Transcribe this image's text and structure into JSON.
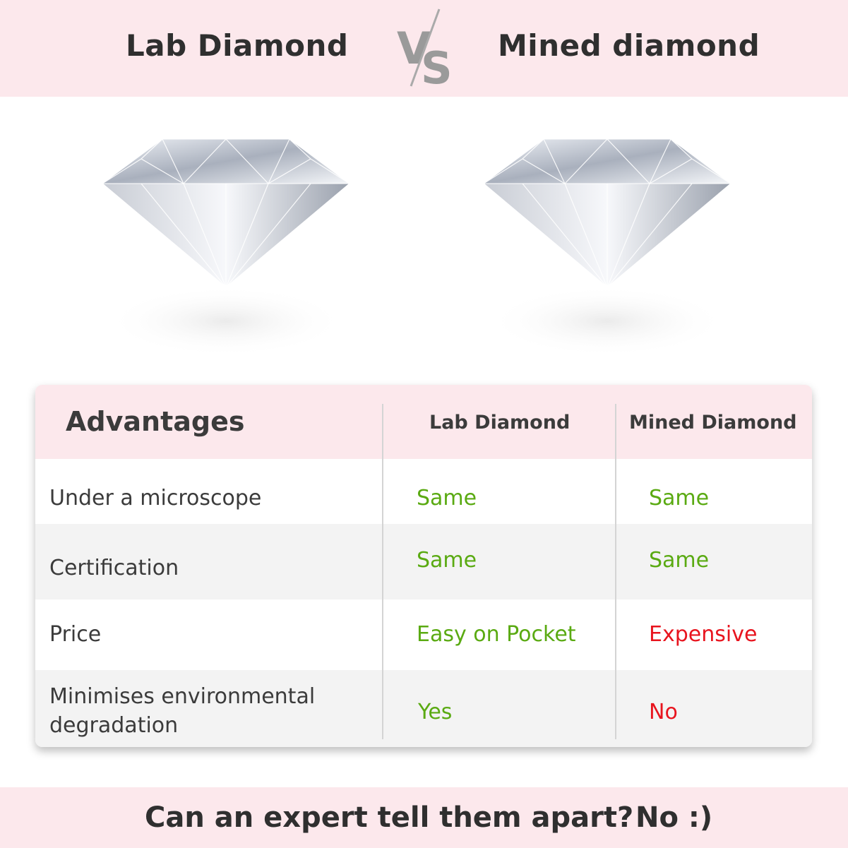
{
  "header": {
    "left_title": "Lab Diamond",
    "vs_label": "VS",
    "right_title": "Mined diamond"
  },
  "images": [
    {
      "name": "lab-diamond"
    },
    {
      "name": "mined-diamond"
    }
  ],
  "table": {
    "headers": [
      "Advantages",
      "Lab Diamond",
      "Mined Diamond"
    ],
    "rows": [
      {
        "label": "Under a microscope",
        "lab": "Same",
        "mined": "Same"
      },
      {
        "label": "Certification",
        "lab": "Same",
        "mined": "Same"
      },
      {
        "label": "Price",
        "lab": "Easy on Pocket",
        "mined": "Expensive"
      },
      {
        "label_line1": "Minimises environmental",
        "label_line2": "degradation",
        "lab": "Yes",
        "mined": "No"
      }
    ]
  },
  "footer": {
    "question": "Can an expert tell them apart?",
    "answer": "No :)"
  },
  "colors": {
    "band": "#fce8ec",
    "positive": "#5aaa12",
    "negative": "#e8141e",
    "row_alt": "#f3f3f3"
  }
}
